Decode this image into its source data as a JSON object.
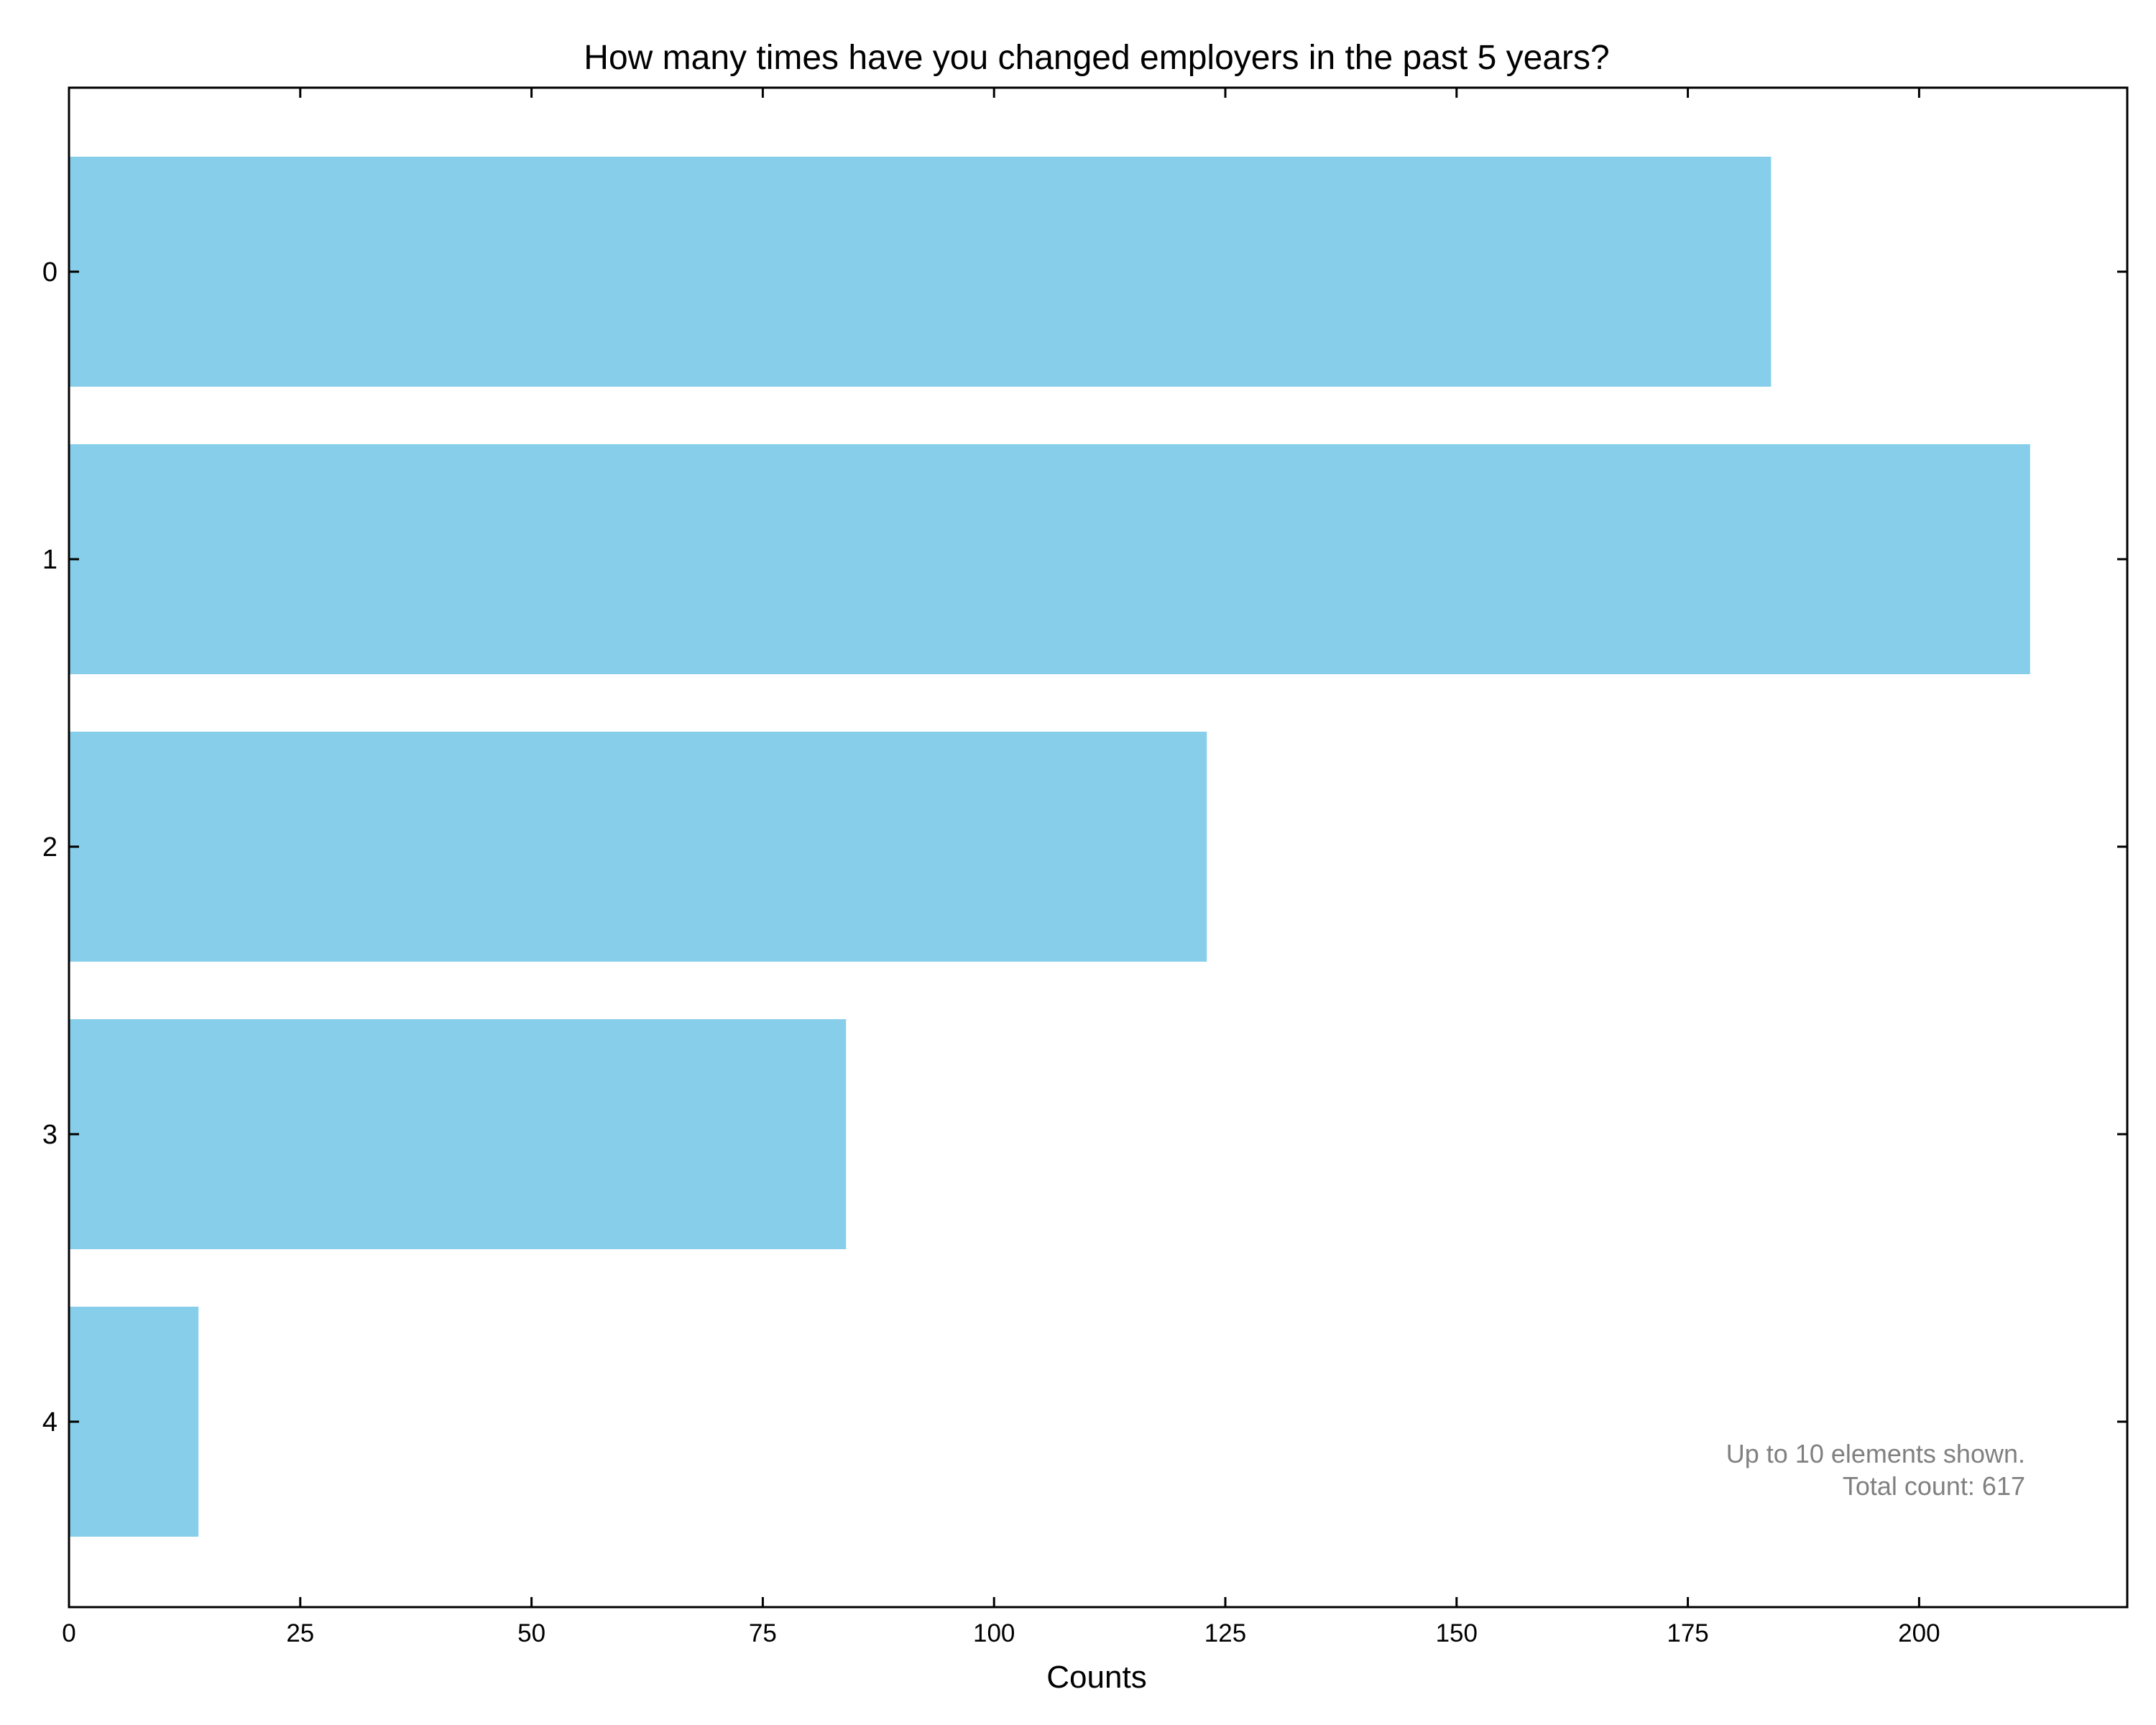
{
  "chart_data": {
    "type": "bar",
    "orientation": "horizontal",
    "title": "How many times have you changed employers in the past 5 years?",
    "xlabel": "Counts",
    "ylabel": "",
    "categories": [
      "0",
      "1",
      "2",
      "3",
      "4"
    ],
    "values": [
      184,
      212,
      123,
      84,
      14
    ],
    "xlim": [
      0,
      222.5
    ],
    "xticks": [
      0,
      25,
      50,
      75,
      100,
      125,
      150,
      175,
      200
    ],
    "bar_color": "#87CEEB",
    "grid": false,
    "annotation": {
      "line1": "Up to 10 elements shown.",
      "line2": "Total count: 617",
      "color": "#808080"
    }
  }
}
